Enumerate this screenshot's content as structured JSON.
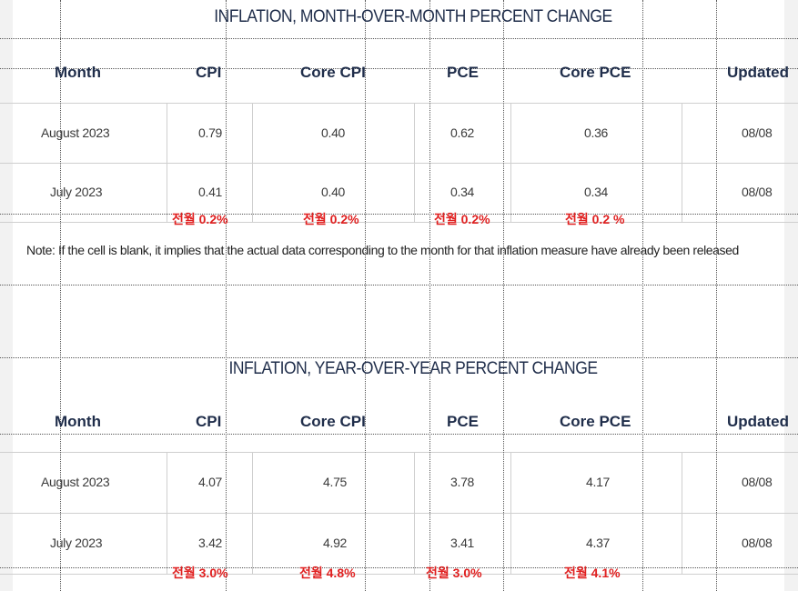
{
  "mom_table": {
    "title": "INFLATION, MONTH-OVER-MONTH PERCENT CHANGE",
    "headers": [
      "Month",
      "CPI",
      "Core CPI",
      "PCE",
      "Core PCE",
      "Updated"
    ],
    "rows": [
      [
        "August 2023",
        "0.79",
        "0.40",
        "0.62",
        "0.36",
        "08/08"
      ],
      [
        "July 2023",
        "0.41",
        "0.40",
        "0.34",
        "0.34",
        "08/08"
      ]
    ],
    "annotations": [
      "전월 0.2%",
      "전월 0.2%",
      "전월 0.2%",
      "전월 0.2 %"
    ]
  },
  "note": "Note: If the cell is blank, it implies that the actual data corresponding to the month for that inflation measure have already been released",
  "yoy_table": {
    "title": "INFLATION, YEAR-OVER-YEAR PERCENT CHANGE",
    "headers": [
      "Month",
      "CPI",
      "Core CPI",
      "PCE",
      "Core PCE",
      "Updated"
    ],
    "rows": [
      [
        "August 2023",
        "4.07",
        "4.75",
        "3.78",
        "4.17",
        "08/08"
      ],
      [
        "July 2023",
        "3.42",
        "4.92",
        "3.41",
        "4.37",
        "08/08"
      ]
    ],
    "annotations": [
      "전월 3.0%",
      "전월 4.8%",
      "전월 3.0%",
      "전월 4.1%"
    ]
  },
  "colors": {
    "header_text": "#1f2d4a",
    "annotation": "#e02020"
  }
}
